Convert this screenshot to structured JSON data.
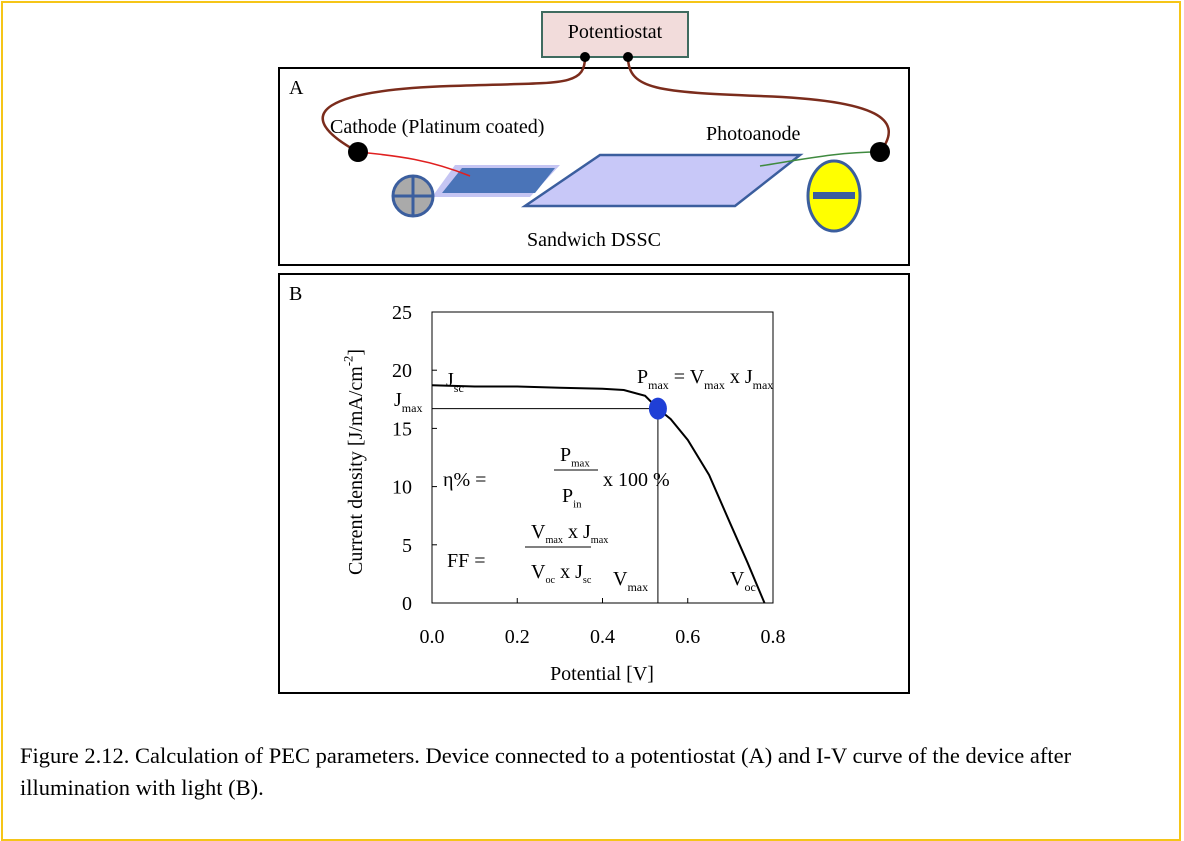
{
  "potentiostat": "Potentiostat",
  "panel_a": {
    "label": "A",
    "cathode": "Cathode (Platinum coated)",
    "photoanode": "Photoanode",
    "device": "Sandwich DSSC"
  },
  "chart_data": {
    "type": "line",
    "panel_label": "B",
    "xlabel": "Potential [V]",
    "ylabel": [
      {
        "t": "Current density [J/mA/cm"
      },
      {
        "sup": "-2"
      },
      {
        "t": "]"
      }
    ],
    "x": [
      0,
      0.1,
      0.2,
      0.3,
      0.4,
      0.45,
      0.5,
      0.53,
      0.56,
      0.6,
      0.65,
      0.7,
      0.74,
      0.78
    ],
    "values": [
      18.7,
      18.6,
      18.6,
      18.5,
      18.4,
      18.3,
      17.8,
      16.7,
      15.8,
      14,
      11,
      6.8,
      3.5,
      0
    ],
    "color": "#000000",
    "xlim": [
      0,
      0.8
    ],
    "ylim": [
      0,
      25
    ],
    "xticks": [
      {
        "value": 0,
        "label": "0.0"
      },
      0.2,
      0.4,
      0.6,
      0.8
    ],
    "yticks": [
      0,
      5,
      10,
      15,
      20,
      25
    ],
    "max_point": {
      "x": 0.53,
      "y": 16.7,
      "color": "#1f3fd6"
    },
    "annotations": {
      "jsc": [
        {
          "t": "J"
        },
        {
          "sub": "sc"
        }
      ],
      "jmax": [
        {
          "t": "J"
        },
        {
          "sub": "max"
        }
      ],
      "pmax_eq": [
        {
          "t": "P"
        },
        {
          "sub": "max"
        },
        {
          "t": " = V"
        },
        {
          "sub": "max"
        },
        {
          "t": " x  J"
        },
        {
          "sub": "max"
        }
      ],
      "eta": {
        "lhs": "η% =",
        "num": [
          {
            "t": "P"
          },
          {
            "sub": "max"
          }
        ],
        "den": [
          {
            "t": "P"
          },
          {
            "sub": "in"
          }
        ],
        "rhs": "x 100 %"
      },
      "ff": {
        "lhs": "FF =",
        "num": [
          {
            "t": "V"
          },
          {
            "sub": "max"
          },
          {
            "t": " x J"
          },
          {
            "sub": "max"
          }
        ],
        "den": [
          {
            "t": "V"
          },
          {
            "sub": "oc"
          },
          {
            "t": " x J"
          },
          {
            "sub": "sc"
          }
        ]
      },
      "vmax": [
        {
          "t": "V"
        },
        {
          "sub": "max"
        }
      ],
      "voc": [
        {
          "t": "V"
        },
        {
          "sub": "oc"
        }
      ]
    }
  },
  "caption": "Figure 2.12.  Calculation of PEC parameters. Device connected to a potentiostat (A) and I-V curve of the device after illumination with light (B)."
}
